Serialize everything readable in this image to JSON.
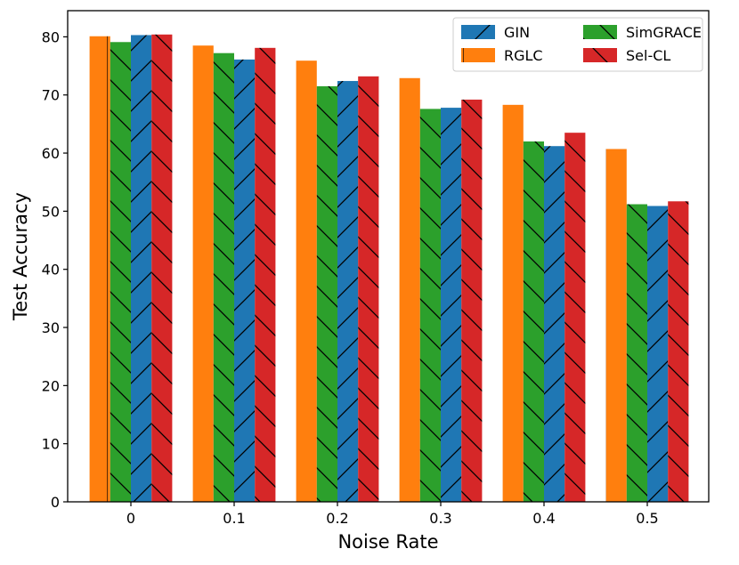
{
  "chart_data": {
    "type": "bar",
    "xlabel": "Noise Rate",
    "ylabel": "Test Accuracy",
    "categories": [
      "0",
      "0.1",
      "0.2",
      "0.3",
      "0.4",
      "0.5"
    ],
    "ylim": [
      0,
      84.5
    ],
    "yticks": [
      0,
      10,
      20,
      30,
      40,
      50,
      60,
      70,
      80
    ],
    "grid": false,
    "legend_position": "top-right",
    "series": [
      {
        "name": "RGLC",
        "color": "#ff7f0e",
        "hatch": "vertical",
        "values": [
          80.1,
          78.5,
          75.9,
          72.9,
          68.3,
          60.7
        ]
      },
      {
        "name": "SimGRACE",
        "color": "#2ca02c",
        "hatch": "backslash",
        "values": [
          79.1,
          77.2,
          71.5,
          67.6,
          62.0,
          51.2
        ]
      },
      {
        "name": "GIN",
        "color": "#1f77b4",
        "hatch": "slash",
        "values": [
          80.3,
          76.1,
          72.4,
          67.8,
          61.2,
          50.9
        ]
      },
      {
        "name": "Sel-CL",
        "color": "#d62728",
        "hatch": "backslash",
        "values": [
          80.4,
          78.1,
          73.2,
          69.2,
          63.5,
          51.7
        ]
      }
    ],
    "legend_order": [
      "GIN",
      "RGLC",
      "SimGRACE",
      "Sel-CL"
    ]
  }
}
